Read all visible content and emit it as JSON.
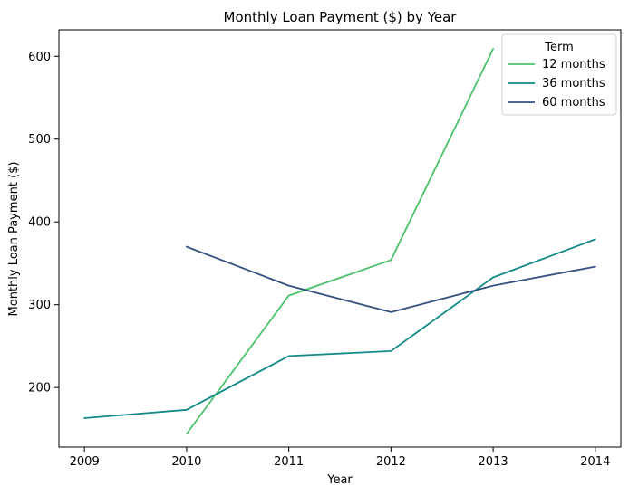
{
  "chart_data": {
    "type": "line",
    "title": "Monthly Loan Payment ($) by Year",
    "xlabel": "Year",
    "ylabel": "Monthly Loan Payment ($)",
    "x": [
      2009,
      2010,
      2011,
      2012,
      2013,
      2014
    ],
    "xlim": [
      2008.75,
      2014.25
    ],
    "ylim": [
      128,
      632
    ],
    "yticks": [
      200,
      300,
      400,
      500,
      600
    ],
    "grid": false,
    "legend": {
      "title": "Term",
      "placement": "top-right"
    },
    "series": [
      {
        "name": "12 months",
        "color": "#4cc26b",
        "points": [
          [
            2010,
            144
          ],
          [
            2011,
            311
          ],
          [
            2012,
            354
          ],
          [
            2013,
            609
          ]
        ]
      },
      {
        "name": "36 months",
        "color": "#138a8a",
        "points": [
          [
            2009,
            163
          ],
          [
            2010,
            173
          ],
          [
            2011,
            238
          ],
          [
            2012,
            244
          ],
          [
            2013,
            333
          ],
          [
            2014,
            379
          ]
        ]
      },
      {
        "name": "60 months",
        "color": "#355081",
        "points": [
          [
            2010,
            370
          ],
          [
            2011,
            323
          ],
          [
            2012,
            291
          ],
          [
            2013,
            323
          ],
          [
            2014,
            346
          ]
        ]
      }
    ]
  }
}
